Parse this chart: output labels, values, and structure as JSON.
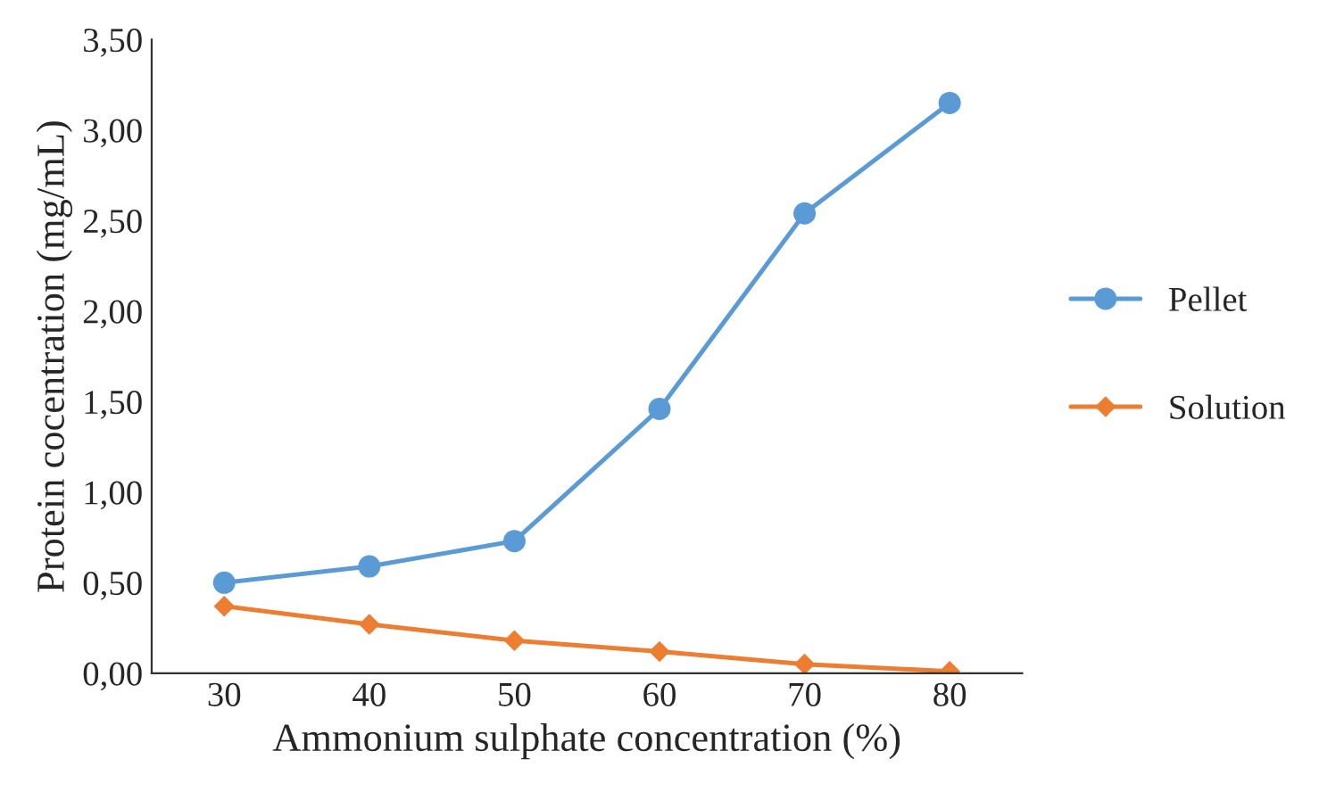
{
  "chart_data": {
    "type": "line",
    "xlabel": "Ammonium sulphate concentration (%)",
    "ylabel": "Protein cocentration (mg/mL)",
    "categories": [
      "30",
      "40",
      "50",
      "60",
      "70",
      "80"
    ],
    "series": [
      {
        "name": "Pellet",
        "color": "#5b9bd5",
        "marker": "circle",
        "values": [
          0.5,
          0.59,
          0.73,
          1.46,
          2.54,
          3.15
        ]
      },
      {
        "name": "Solution",
        "color": "#ed7d31",
        "marker": "diamond",
        "values": [
          0.37,
          0.27,
          0.18,
          0.12,
          0.05,
          0.01
        ]
      }
    ],
    "ylim": [
      0,
      3.5
    ],
    "yticks": [
      {
        "value": 0,
        "label": "0,00"
      },
      {
        "value": 0.5,
        "label": "0,50"
      },
      {
        "value": 1,
        "label": "1,00"
      },
      {
        "value": 1.5,
        "label": "1,50"
      },
      {
        "value": 2,
        "label": "2,00"
      },
      {
        "value": 2.5,
        "label": "2,50"
      },
      {
        "value": 3,
        "label": "3,00"
      },
      {
        "value": 3.5,
        "label": "3,50"
      }
    ],
    "grid": false,
    "legend": "right"
  }
}
